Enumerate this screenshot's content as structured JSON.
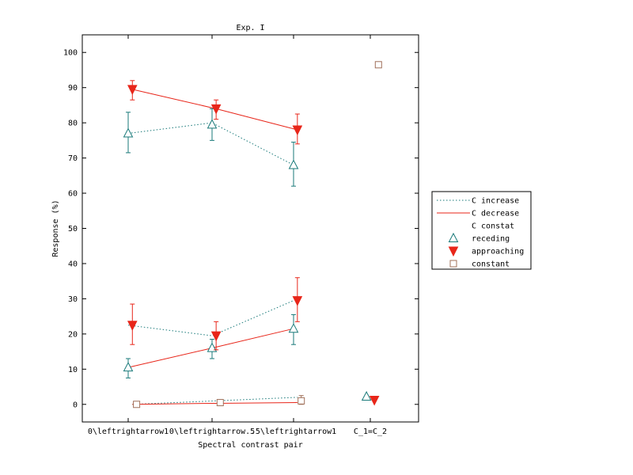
{
  "chart_data": {
    "type": "line",
    "title": "Exp. I",
    "xlabel": "Spectral contrast pair",
    "ylabel": "Response (%)",
    "categories": [
      "0\\leftrightarrow1",
      "0\\leftrightarrow.5",
      ".5\\leftrightarrow1",
      "C_1=C_2"
    ],
    "ylim": [
      -5,
      105
    ],
    "yticks": [
      0,
      10,
      20,
      30,
      40,
      50,
      60,
      70,
      80,
      90,
      100
    ],
    "colors": {
      "receding": "#1a7a7a",
      "approaching": "#e8261a",
      "constant": "#a0705a"
    },
    "legend": {
      "position": "outside-right",
      "entries": [
        "C increase",
        "C decrease",
        "C constat",
        "receding",
        "approaching",
        "constant"
      ]
    },
    "lines": [
      {
        "style": "dotted",
        "color": "#1a7a7a",
        "x": [
          0,
          1,
          2
        ],
        "y": [
          77,
          80,
          68
        ]
      },
      {
        "style": "dotted",
        "color": "#1a7a7a",
        "x": [
          0,
          1,
          2
        ],
        "y": [
          22.5,
          19.5,
          29.5
        ]
      },
      {
        "style": "dotted",
        "color": "#1a7a7a",
        "x": [
          0.05,
          1.05,
          2.05
        ],
        "y": [
          0,
          1,
          2
        ]
      },
      {
        "style": "solid",
        "color": "#e8261a",
        "x": [
          0.05,
          1.05,
          2.05
        ],
        "y": [
          89.5,
          84,
          78
        ]
      },
      {
        "style": "solid",
        "color": "#e8261a",
        "x": [
          0,
          1,
          2
        ],
        "y": [
          10.5,
          16,
          21.5
        ]
      },
      {
        "style": "solid",
        "color": "#e8261a",
        "x": [
          0.05,
          1.05,
          2.05
        ],
        "y": [
          0,
          0.3,
          0.5
        ]
      }
    ],
    "series": [
      {
        "name": "receding",
        "marker": "triangle-up",
        "color": "#1a7a7a",
        "points": [
          {
            "x": 0,
            "y": 77,
            "err": [
              71.5,
              83
            ]
          },
          {
            "x": 1,
            "y": 79.5,
            "err": [
              75,
              84
            ]
          },
          {
            "x": 2,
            "y": 68,
            "err": [
              62,
              74.5
            ]
          },
          {
            "x": 0,
            "y": 10.5,
            "err": [
              7.5,
              13
            ]
          },
          {
            "x": 1,
            "y": 16,
            "err": [
              13,
              18.5
            ]
          },
          {
            "x": 2,
            "y": 21.5,
            "err": [
              17,
              25.5
            ]
          },
          {
            "x": 2.95,
            "y": 2.2,
            "err": null
          }
        ]
      },
      {
        "name": "approaching",
        "marker": "triangle-down",
        "color": "#e8261a",
        "points": [
          {
            "x": 0.05,
            "y": 89.5,
            "err": [
              86.5,
              92
            ]
          },
          {
            "x": 1.05,
            "y": 84,
            "err": [
              81,
              86.5
            ]
          },
          {
            "x": 2.05,
            "y": 78,
            "err": [
              74,
              82.5
            ]
          },
          {
            "x": 0.05,
            "y": 22.5,
            "err": [
              17,
              28.5
            ]
          },
          {
            "x": 1.05,
            "y": 19.5,
            "err": [
              15.5,
              23.5
            ]
          },
          {
            "x": 2.05,
            "y": 29.5,
            "err": [
              23.5,
              36
            ]
          },
          {
            "x": 3.05,
            "y": 1.2,
            "err": null
          }
        ]
      },
      {
        "name": "constant",
        "marker": "square",
        "color": "#a0705a",
        "points": [
          {
            "x": 0.1,
            "y": 0,
            "err": null
          },
          {
            "x": 1.1,
            "y": 0.5,
            "err": [
              0,
              1
            ]
          },
          {
            "x": 2.1,
            "y": 1,
            "err": [
              0,
              2.5
            ]
          },
          {
            "x": 3.1,
            "y": 96.5,
            "err": null
          }
        ]
      }
    ]
  }
}
